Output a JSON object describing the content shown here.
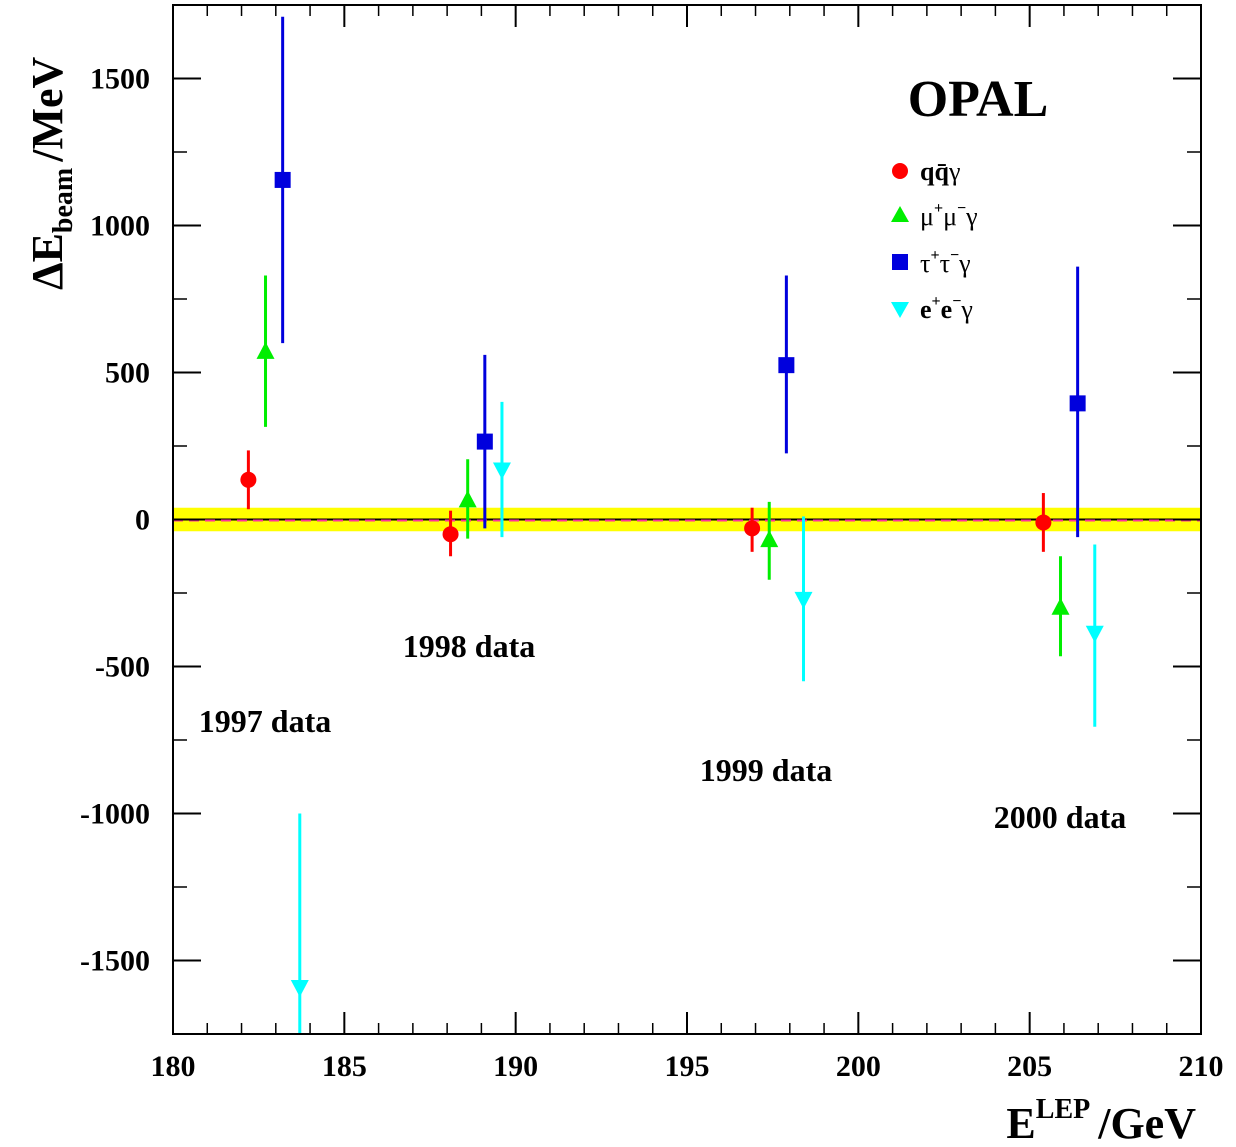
{
  "chart_data": {
    "type": "scatter",
    "brand": "OPAL",
    "xlabel": "E",
    "xlabel_sup": "LEP",
    "xlabel_unit": "/GeV",
    "ylabel": "ΔE",
    "ylabel_sub": "beam",
    "ylabel_unit": "/MeV",
    "xlim": [
      180,
      210
    ],
    "ylim": [
      -1750,
      1750
    ],
    "x_ticks": [
      180,
      185,
      190,
      195,
      200,
      205,
      210
    ],
    "y_ticks": [
      -1500,
      -1000,
      -500,
      0,
      500,
      1000,
      1500
    ],
    "grid": false,
    "legend_position": "top-right",
    "reference_band": {
      "center": 0,
      "half_width": 40,
      "color": "#ffff00",
      "line_color": "#000000",
      "dash_color": "#ff3399"
    },
    "annotations": [
      {
        "id": "1997",
        "text": "1997 data"
      },
      {
        "id": "1998",
        "text": "1998 data"
      },
      {
        "id": "1999",
        "text": "1999 data"
      },
      {
        "id": "2000",
        "text": "2000 data"
      }
    ],
    "series": [
      {
        "name": "qq̄γ",
        "name_parts": [
          "q",
          "q̄",
          "γ"
        ],
        "marker": "circle",
        "color": "#ff0000",
        "points": [
          {
            "x": 182.2,
            "y": 135,
            "lo": 35,
            "hi": 235
          },
          {
            "x": 188.1,
            "y": -50,
            "lo": -125,
            "hi": 30
          },
          {
            "x": 196.9,
            "y": -30,
            "lo": -110,
            "hi": 40
          },
          {
            "x": 205.4,
            "y": -10,
            "lo": -110,
            "hi": 90
          }
        ]
      },
      {
        "name": "μ+μ−γ",
        "name_parts": [
          "μ",
          "+",
          "μ",
          "−",
          "γ"
        ],
        "marker": "triangle-up",
        "color": "#00ee00",
        "points": [
          {
            "x": 182.7,
            "y": 570,
            "lo": 315,
            "hi": 830
          },
          {
            "x": 188.6,
            "y": 65,
            "lo": -65,
            "hi": 205
          },
          {
            "x": 197.4,
            "y": -70,
            "lo": -205,
            "hi": 60
          },
          {
            "x": 205.9,
            "y": -300,
            "lo": -465,
            "hi": -125
          }
        ]
      },
      {
        "name": "τ+τ−γ",
        "name_parts": [
          "τ",
          "+",
          "τ",
          "−",
          "γ"
        ],
        "marker": "square",
        "color": "#0000dd",
        "points": [
          {
            "x": 183.2,
            "y": 1155,
            "lo": 600,
            "hi": 1710
          },
          {
            "x": 189.1,
            "y": 265,
            "lo": -30,
            "hi": 560
          },
          {
            "x": 197.9,
            "y": 525,
            "lo": 225,
            "hi": 830
          },
          {
            "x": 206.4,
            "y": 395,
            "lo": -60,
            "hi": 860
          }
        ]
      },
      {
        "name": "e+e−γ",
        "name_parts": [
          "e",
          "+",
          "e",
          "−",
          "γ"
        ],
        "marker": "triangle-down",
        "color": "#00ffff",
        "points": [
          {
            "x": 183.7,
            "y": -1590,
            "lo": -1750,
            "hi": -1000
          },
          {
            "x": 189.6,
            "y": 170,
            "lo": -60,
            "hi": 400
          },
          {
            "x": 198.4,
            "y": -270,
            "lo": -550,
            "hi": 10
          },
          {
            "x": 206.9,
            "y": -385,
            "lo": -705,
            "hi": -85
          }
        ]
      }
    ]
  }
}
